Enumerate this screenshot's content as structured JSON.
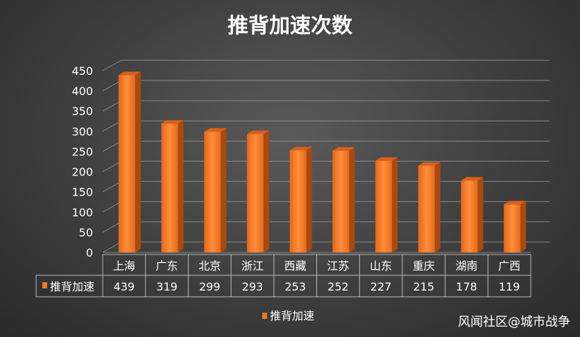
{
  "chart_data": {
    "type": "bar",
    "title": "推背加速次数",
    "categories": [
      "上海",
      "广东",
      "北京",
      "浙江",
      "西藏",
      "江苏",
      "山东",
      "重庆",
      "湖南",
      "广西"
    ],
    "series": [
      {
        "name": "推背加速",
        "values": [
          439,
          319,
          299,
          293,
          253,
          252,
          227,
          215,
          178,
          119
        ],
        "color": "#f07820"
      }
    ],
    "ylim": [
      0,
      450
    ],
    "yticks": [
      0,
      50,
      100,
      150,
      200,
      250,
      300,
      350,
      400,
      450
    ],
    "grid": true,
    "legend_position": "bottom",
    "data_table": true
  },
  "watermark": "风闻社区@城市战争"
}
